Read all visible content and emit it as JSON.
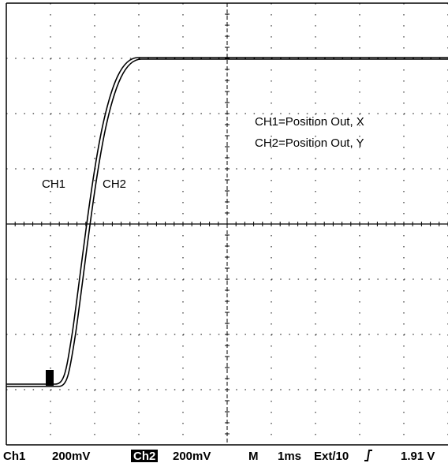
{
  "screen": {
    "trace_labels": [
      "CH1",
      "CH2"
    ],
    "legend": [
      "CH1=Position Out, X",
      "CH2=Position Out, Y"
    ],
    "status": {
      "ch1": "Ch1",
      "ch1_scale": "200mV",
      "ch2": "Ch2",
      "ch2_scale": "200mV",
      "mode": "M",
      "timebase": "1ms",
      "trigger_source": "Ext/10",
      "trigger_level": "1.91 V"
    }
  }
}
